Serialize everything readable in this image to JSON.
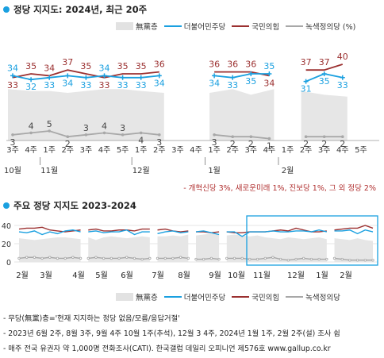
{
  "top": {
    "title": "정당 지지도: 2024년, 최근 20주",
    "legend": {
      "area": "無黨층",
      "dem": "더불어민주당",
      "ppp": "국민의힘",
      "green": "녹색정의당 (%)"
    },
    "note": "- 개혁신당 3%, 새로운미래 1%, 진보당 1%, 그 외 정당 2%"
  },
  "bottom": {
    "title": "주요 정당 지지도 2023-2024",
    "legend": {
      "area": "無黨층",
      "dem": "더불어민주당",
      "ppp": "국민의힘",
      "green": "녹색정의당"
    }
  },
  "footnotes": [
    "- 무당(無黨)층='현재 지지하는 정당 없음/모름/응답거절'",
    "- 2023년 6월 2주, 8월 3주, 9월 4주 10월 1주(추석), 12월 3 4주, 2024년 1월 1주, 2월 2주(설) 조사 쉼",
    "- 매주 전국 유권자 약 1,000명 전화조사(CATI). 한국갤럽 데일리 오피니언 제576호 www.gallup.co.kr"
  ],
  "colors": {
    "dem": "#1aa0e0",
    "ppp": "#9b3030",
    "green": "#a8a8a8",
    "area": "#e6e6e6",
    "frame": "#1aa0e0"
  },
  "chart_data": [
    {
      "type": "line",
      "title": "정당 지지도: 2024년, 최근 20주",
      "categories": [
        "3주",
        "4주",
        "1주",
        "2주",
        "3주",
        "4주",
        "5주",
        "1주",
        "2주",
        "3주",
        "4주",
        "1주",
        "2주",
        "3주",
        "4주",
        "1주",
        "2주",
        "3주",
        "4주",
        "5주"
      ],
      "months": [
        {
          "label": "10월",
          "index": 0
        },
        {
          "label": "11월",
          "index": 2
        },
        {
          "label": "12월",
          "index": 7
        },
        {
          "label": "1월",
          "index": 11
        },
        {
          "label": "2월",
          "index": 15
        }
      ],
      "series": [
        {
          "name": "더불어민주당",
          "values": [
            34,
            32,
            33,
            34,
            33,
            34,
            33,
            33,
            34,
            null,
            null,
            34,
            33,
            35,
            35,
            null,
            31,
            35,
            33,
            null
          ]
        },
        {
          "name": "국민의힘",
          "values": [
            33,
            35,
            34,
            37,
            35,
            33,
            35,
            35,
            36,
            null,
            null,
            36,
            36,
            36,
            34,
            null,
            37,
            37,
            40,
            null
          ]
        },
        {
          "name": "녹색정의당",
          "values": [
            3,
            4,
            5,
            2,
            3,
            4,
            3,
            4,
            3,
            null,
            null,
            3,
            2,
            2,
            1,
            null,
            2,
            2,
            2,
            null
          ]
        },
        {
          "name": "無黨층",
          "values": [
            27,
            26,
            26,
            25,
            26,
            27,
            27,
            26,
            25,
            null,
            null,
            25,
            27,
            24,
            27,
            null,
            26,
            24,
            23,
            null
          ]
        }
      ],
      "ylim": [
        0,
        45
      ]
    },
    {
      "type": "line",
      "title": "주요 정당 지지도 2023-2024",
      "x_labels": [
        "2월",
        "3월",
        "4월",
        "5월",
        "6월",
        "7월",
        "8월",
        "9월",
        "10월",
        "11월",
        "12월",
        "1월",
        "2월"
      ],
      "series": [
        {
          "name": "더불어민주당",
          "values": [
            33,
            32,
            34,
            30,
            33,
            31,
            34,
            35,
            33,
            33,
            34,
            32,
            33,
            33,
            35,
            30,
            33,
            33,
            31,
            33,
            34,
            32,
            33,
            33,
            34,
            32,
            30,
            33,
            33,
            28,
            33,
            33,
            33,
            34,
            33,
            33,
            34,
            34,
            33,
            35,
            33,
            34,
            34,
            35,
            31,
            35,
            33
          ]
        },
        {
          "name": "국민의힘",
          "values": [
            36,
            37,
            37,
            38,
            35,
            34,
            33,
            34,
            35,
            35,
            36,
            34,
            34,
            35,
            35,
            34,
            36,
            36,
            35,
            36,
            34,
            33,
            34,
            33,
            33,
            32,
            33,
            33,
            32,
            32,
            33,
            33,
            33,
            34,
            35,
            34,
            37,
            35,
            33,
            33,
            34,
            35,
            36,
            37,
            37,
            40,
            37
          ]
        },
        {
          "name": "녹색정의당",
          "values": [
            4,
            5,
            5,
            4,
            5,
            4,
            4,
            5,
            4,
            4,
            5,
            4,
            4,
            4,
            5,
            4,
            3,
            4,
            4,
            4,
            4,
            5,
            4,
            3,
            3,
            4,
            3,
            4,
            4,
            4,
            3,
            3,
            4,
            5,
            3,
            2,
            3,
            4,
            3,
            3,
            3,
            4,
            3,
            2,
            2,
            2,
            2
          ]
        },
        {
          "name": "無黨층",
          "values": [
            26,
            25,
            24,
            25,
            26,
            27,
            27,
            26,
            25,
            27,
            24,
            27,
            28,
            27,
            26,
            27,
            28,
            27,
            28,
            28,
            29,
            28,
            30,
            29,
            30,
            31,
            30,
            29,
            30,
            29,
            28,
            29,
            27,
            26,
            25,
            27,
            26,
            25,
            26,
            27,
            25,
            26,
            25,
            24,
            26,
            24,
            23
          ]
        }
      ],
      "ylim": [
        0,
        45
      ],
      "yticks": [
        0,
        20,
        40
      ]
    }
  ]
}
